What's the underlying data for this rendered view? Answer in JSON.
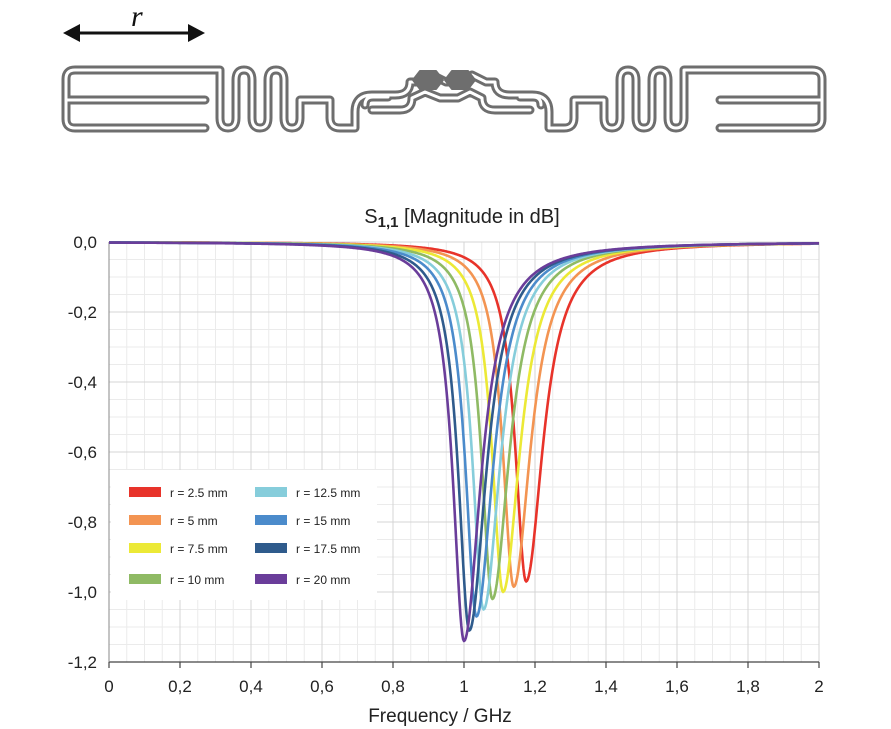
{
  "diagram": {
    "symbol": "r",
    "antenna_color": "#6e6e6e"
  },
  "chart_data": {
    "type": "line",
    "title_main": "S",
    "title_sub": "1,1",
    "title_rest": " [Magnitude in dB]",
    "xlabel": "Frequency / GHz",
    "ylabel": "",
    "xlim": [
      0,
      2
    ],
    "ylim": [
      -1.2,
      0
    ],
    "x_ticks": [
      0,
      0.2,
      0.4,
      0.6,
      0.8,
      1,
      1.2,
      1.4,
      1.6,
      1.8,
      2
    ],
    "x_tick_labels": [
      "0",
      "0,2",
      "0,4",
      "0,6",
      "0,8",
      "1",
      "1,2",
      "1,4",
      "1,6",
      "1,8",
      "2"
    ],
    "y_ticks": [
      0,
      -0.2,
      -0.4,
      -0.6,
      -0.8,
      -1.0,
      -1.2
    ],
    "y_tick_labels": [
      "0,0",
      "-0,2",
      "-0,4",
      "-0,6",
      "-0,8",
      "-1,0",
      "-1,2"
    ],
    "grid": true,
    "legend_position": "bottom-left",
    "series": [
      {
        "name": "r = 2.5 mm",
        "color": "#e8332a",
        "resonance_ghz": 1.175,
        "min_db": -0.97
      },
      {
        "name": "r = 5 mm",
        "color": "#f39452",
        "resonance_ghz": 1.14,
        "min_db": -0.985
      },
      {
        "name": "r = 7.5 mm",
        "color": "#ece936",
        "resonance_ghz": 1.11,
        "min_db": -1.0
      },
      {
        "name": "r = 10 mm",
        "color": "#8fba64",
        "resonance_ghz": 1.08,
        "min_db": -1.02
      },
      {
        "name": "r = 12.5 mm",
        "color": "#86cddb",
        "resonance_ghz": 1.055,
        "min_db": -1.05
      },
      {
        "name": "r = 15 mm",
        "color": "#4b8bcb",
        "resonance_ghz": 1.035,
        "min_db": -1.07
      },
      {
        "name": "r = 17.5 mm",
        "color": "#2f5b8c",
        "resonance_ghz": 1.015,
        "min_db": -1.11
      },
      {
        "name": "r = 20 mm",
        "color": "#6a3d9a",
        "resonance_ghz": 1.0,
        "min_db": -1.14
      }
    ]
  }
}
